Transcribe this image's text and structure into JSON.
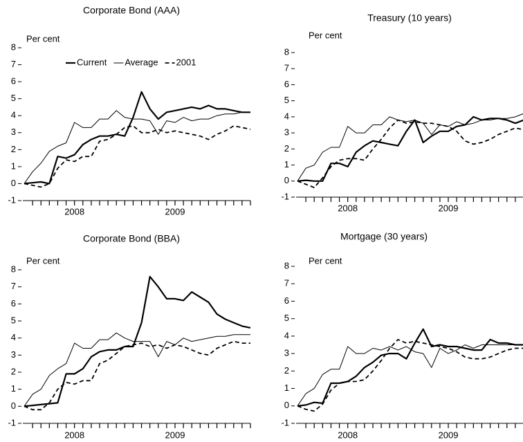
{
  "chart_data": [
    {
      "type": "line",
      "title": "Corporate Bond (AAA)",
      "ylabel": "Per cent",
      "categories": [
        null,
        null,
        null,
        null,
        null,
        null,
        "2008",
        null,
        null,
        null,
        null,
        null,
        null,
        null,
        null,
        null,
        null,
        null,
        "2009",
        null,
        null,
        null,
        null,
        null,
        null,
        null,
        null,
        null
      ],
      "ylim": [
        -1,
        8
      ],
      "yticks": [
        -1,
        0,
        1,
        2,
        3,
        4,
        5,
        6,
        7,
        8
      ],
      "legend": "top-left",
      "series": [
        {
          "name": "Current",
          "color": "#000000",
          "style": "thick",
          "values": [
            0,
            0.05,
            0.1,
            0,
            1.6,
            1.5,
            1.7,
            2.3,
            2.6,
            2.8,
            2.8,
            2.9,
            2.8,
            3.9,
            5.4,
            4.4,
            3.8,
            4.2,
            4.3,
            4.4,
            4.5,
            4.4,
            4.6,
            4.4,
            4.4,
            4.3,
            4.2,
            4.2
          ]
        },
        {
          "name": "Average",
          "color": "#000000",
          "style": "thin",
          "values": [
            0,
            0.7,
            1.2,
            1.9,
            2.2,
            2.4,
            3.6,
            3.3,
            3.3,
            3.8,
            3.8,
            4.3,
            3.9,
            3.8,
            3.8,
            3.7,
            2.9,
            3.7,
            3.6,
            3.9,
            3.7,
            3.8,
            3.8,
            4.0,
            4.1,
            4.1,
            4.2,
            4.2
          ]
        },
        {
          "name": "2001",
          "color": "#000000",
          "style": "dashed",
          "values": [
            0,
            -0.1,
            -0.2,
            0,
            0.9,
            1.4,
            1.3,
            1.6,
            1.6,
            2.5,
            2.6,
            2.9,
            3.3,
            3.4,
            3.0,
            3.0,
            3.2,
            3.0,
            3.1,
            3.0,
            2.9,
            2.8,
            2.6,
            2.9,
            3.1,
            3.4,
            3.3,
            3.2
          ]
        }
      ]
    },
    {
      "type": "line",
      "title": "Treasury (10 years)",
      "ylabel": "Per cent",
      "categories": [
        null,
        null,
        null,
        null,
        null,
        null,
        "2008",
        null,
        null,
        null,
        null,
        null,
        null,
        null,
        null,
        null,
        null,
        null,
        "2009",
        null,
        null,
        null,
        null,
        null,
        null,
        null,
        null,
        null
      ],
      "ylim": [
        -1,
        8
      ],
      "yticks": [
        -1,
        0,
        1,
        2,
        3,
        4,
        5,
        6,
        7,
        8
      ],
      "series": [
        {
          "color": "#000000",
          "style": "thick",
          "values": [
            0,
            0.05,
            0,
            0,
            1.1,
            1.1,
            0.9,
            1.8,
            2.2,
            2.5,
            2.4,
            2.3,
            2.2,
            3.1,
            3.8,
            2.4,
            2.8,
            3.1,
            3.1,
            3.4,
            3.5,
            4.0,
            3.8,
            3.9,
            3.9,
            3.8,
            3.6,
            3.8
          ]
        },
        {
          "color": "#000000",
          "style": "thin",
          "values": [
            0,
            0.8,
            1.0,
            1.8,
            2.1,
            2.1,
            3.4,
            3.0,
            3.0,
            3.5,
            3.5,
            4.0,
            3.8,
            3.7,
            3.8,
            3.6,
            2.9,
            3.5,
            3.4,
            3.7,
            3.5,
            3.6,
            3.8,
            3.8,
            3.9,
            3.9,
            4.0,
            4.2
          ]
        },
        {
          "color": "#000000",
          "style": "dashed",
          "values": [
            0,
            -0.2,
            -0.4,
            0.2,
            0.9,
            1.3,
            1.4,
            1.4,
            1.3,
            2.0,
            2.6,
            3.3,
            3.8,
            3.6,
            3.7,
            3.6,
            3.6,
            3.5,
            3.4,
            3.1,
            2.5,
            2.3,
            2.4,
            2.6,
            2.9,
            3.1,
            3.3,
            3.2
          ]
        }
      ]
    },
    {
      "type": "line",
      "title": "Corporate Bond (BBA)",
      "ylabel": "Per cent",
      "categories": [
        null,
        null,
        null,
        null,
        null,
        null,
        "2008",
        null,
        null,
        null,
        null,
        null,
        null,
        null,
        null,
        null,
        null,
        null,
        "2009",
        null,
        null,
        null,
        null,
        null,
        null,
        null,
        null,
        null
      ],
      "ylim": [
        -1,
        8
      ],
      "yticks": [
        -1,
        0,
        1,
        2,
        3,
        4,
        5,
        6,
        7,
        8
      ],
      "series": [
        {
          "color": "#000000",
          "style": "thick",
          "values": [
            0,
            0.05,
            0.1,
            0.15,
            0.2,
            1.9,
            1.9,
            2.2,
            2.9,
            3.2,
            3.3,
            3.3,
            3.5,
            3.5,
            4.9,
            7.6,
            7.0,
            6.3,
            6.3,
            6.2,
            6.7,
            6.4,
            6.1,
            5.4,
            5.1,
            4.9,
            4.7,
            4.6
          ]
        },
        {
          "color": "#000000",
          "style": "thin",
          "values": [
            0,
            0.7,
            1.0,
            1.8,
            2.2,
            2.5,
            3.7,
            3.4,
            3.4,
            3.9,
            3.9,
            4.3,
            4.0,
            3.8,
            3.8,
            3.8,
            2.9,
            3.8,
            3.6,
            4.0,
            3.8,
            3.9,
            4.0,
            4.1,
            4.1,
            4.2,
            4.2,
            4.2
          ]
        },
        {
          "color": "#000000",
          "style": "dashed",
          "values": [
            0,
            -0.2,
            -0.2,
            0.2,
            1.0,
            1.4,
            1.3,
            1.5,
            1.5,
            2.5,
            2.7,
            3.1,
            3.5,
            3.6,
            3.7,
            3.5,
            3.6,
            3.4,
            3.6,
            3.5,
            3.3,
            3.1,
            3.0,
            3.4,
            3.6,
            3.8,
            3.7,
            3.7
          ]
        }
      ]
    },
    {
      "type": "line",
      "title": "Mortgage (30 years)",
      "ylabel": "Per cent",
      "categories": [
        null,
        null,
        null,
        null,
        null,
        null,
        "2008",
        null,
        null,
        null,
        null,
        null,
        null,
        null,
        null,
        null,
        null,
        null,
        "2009",
        null,
        null,
        null,
        null,
        null,
        null,
        null,
        null,
        null
      ],
      "ylim": [
        -1,
        8
      ],
      "yticks": [
        -1,
        0,
        1,
        2,
        3,
        4,
        5,
        6,
        7,
        8
      ],
      "series": [
        {
          "color": "#000000",
          "style": "thick",
          "values": [
            0,
            0.05,
            0.2,
            0.15,
            1.3,
            1.3,
            1.4,
            1.7,
            2.2,
            2.5,
            2.9,
            3.0,
            3.0,
            2.7,
            3.6,
            4.4,
            3.4,
            3.5,
            3.4,
            3.4,
            3.3,
            3.2,
            3.2,
            3.8,
            3.6,
            3.6,
            3.5,
            3.5
          ]
        },
        {
          "color": "#000000",
          "style": "thin",
          "values": [
            0,
            0.7,
            1.0,
            1.8,
            2.1,
            2.1,
            3.4,
            3.0,
            3.0,
            3.3,
            3.2,
            3.4,
            3.2,
            3.4,
            3.1,
            3.0,
            2.2,
            3.3,
            3.0,
            3.2,
            3.5,
            3.3,
            3.5,
            3.5,
            3.5,
            3.5,
            3.5,
            3.5
          ]
        },
        {
          "color": "#000000",
          "style": "dashed",
          "values": [
            0,
            -0.2,
            -0.3,
            0.1,
            0.9,
            1.3,
            1.4,
            1.4,
            1.5,
            2.0,
            2.6,
            3.3,
            3.8,
            3.6,
            3.7,
            3.6,
            3.5,
            3.4,
            3.3,
            3.1,
            2.8,
            2.7,
            2.7,
            2.8,
            3.0,
            3.2,
            3.3,
            3.3
          ]
        }
      ]
    }
  ]
}
